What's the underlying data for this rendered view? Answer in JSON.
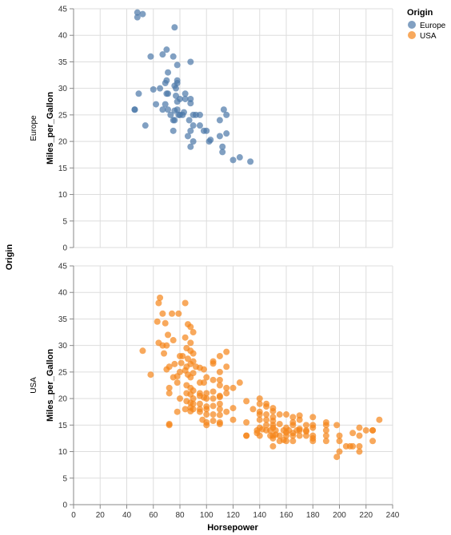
{
  "chart_data": {
    "type": "scatter",
    "facet_title": "Origin",
    "xlabel": "Horsepower",
    "ylabel": "Miles_per_Gallon",
    "xlim": [
      0,
      240
    ],
    "ylim": [
      0,
      45
    ],
    "x_ticks": [
      0,
      20,
      40,
      60,
      80,
      100,
      120,
      140,
      160,
      180,
      200,
      220,
      240
    ],
    "y_ticks": [
      0,
      5,
      10,
      15,
      20,
      25,
      30,
      35,
      40,
      45
    ],
    "grid": true,
    "legend": {
      "title": "Origin",
      "placement": "top-right",
      "entries": [
        {
          "name": "Europe",
          "color": "#4c78a8"
        },
        {
          "name": "USA",
          "color": "#f58518"
        }
      ]
    },
    "series": [
      {
        "name": "Europe",
        "color": "#4c78a8",
        "points": [
          [
            48,
            44.3
          ],
          [
            48,
            43.4
          ],
          [
            52,
            44
          ],
          [
            76,
            41.5
          ],
          [
            67,
            36.4
          ],
          [
            70,
            37.3
          ],
          [
            58,
            36
          ],
          [
            75,
            36
          ],
          [
            78,
            34.4
          ],
          [
            88,
            35
          ],
          [
            71,
            33
          ],
          [
            78,
            31.5
          ],
          [
            69,
            31
          ],
          [
            70,
            31.5
          ],
          [
            76,
            30.5
          ],
          [
            77,
            30
          ],
          [
            78,
            31
          ],
          [
            65,
            30
          ],
          [
            60,
            29.8
          ],
          [
            70,
            29
          ],
          [
            71,
            29
          ],
          [
            77,
            28.6
          ],
          [
            80,
            28
          ],
          [
            84,
            29
          ],
          [
            84,
            28
          ],
          [
            78,
            27.5
          ],
          [
            69,
            27
          ],
          [
            62,
            27
          ],
          [
            88,
            28
          ],
          [
            88,
            27.2
          ],
          [
            67,
            26
          ],
          [
            71,
            26
          ],
          [
            76,
            25.8
          ],
          [
            78,
            26
          ],
          [
            80,
            25
          ],
          [
            46,
            26
          ],
          [
            46,
            26
          ],
          [
            73,
            25
          ],
          [
            79,
            25
          ],
          [
            82,
            25
          ],
          [
            83,
            25.5
          ],
          [
            90,
            25
          ],
          [
            92,
            25
          ],
          [
            95,
            25
          ],
          [
            100,
            22
          ],
          [
            98,
            22
          ],
          [
            110,
            24
          ],
          [
            113,
            26
          ],
          [
            115,
            25
          ],
          [
            87,
            24
          ],
          [
            90,
            23
          ],
          [
            95,
            23
          ],
          [
            54,
            23
          ],
          [
            75,
            24
          ],
          [
            76,
            24
          ],
          [
            75,
            22
          ],
          [
            88,
            22
          ],
          [
            86,
            21
          ],
          [
            90,
            20
          ],
          [
            102,
            20
          ],
          [
            103,
            20.3
          ],
          [
            112,
            18
          ],
          [
            112,
            19
          ],
          [
            88,
            19
          ],
          [
            115,
            21.5
          ],
          [
            110,
            21
          ],
          [
            120,
            16.5
          ],
          [
            125,
            17
          ],
          [
            133,
            16.2
          ],
          [
            49,
            29
          ]
        ]
      },
      {
        "name": "USA",
        "color": "#f58518",
        "points": [
          [
            65,
            39
          ],
          [
            64,
            38
          ],
          [
            84,
            38
          ],
          [
            67,
            36
          ],
          [
            74,
            36
          ],
          [
            79,
            36
          ],
          [
            63,
            34.5
          ],
          [
            69,
            34.2
          ],
          [
            86,
            34
          ],
          [
            88,
            33.5
          ],
          [
            90,
            32.5
          ],
          [
            71,
            32
          ],
          [
            75,
            31
          ],
          [
            84,
            31.5
          ],
          [
            88,
            30.5
          ],
          [
            64,
            30.5
          ],
          [
            67,
            30
          ],
          [
            70,
            30
          ],
          [
            52,
            29
          ],
          [
            85,
            29.5
          ],
          [
            88,
            29
          ],
          [
            90,
            28.5
          ],
          [
            110,
            28
          ],
          [
            115,
            28.8
          ],
          [
            68,
            28.5
          ],
          [
            80,
            28
          ],
          [
            82,
            28
          ],
          [
            86,
            27.5
          ],
          [
            90,
            27
          ],
          [
            105,
            27
          ],
          [
            105,
            26.6
          ],
          [
            76,
            26.5
          ],
          [
            81,
            26.7
          ],
          [
            85,
            26
          ],
          [
            88,
            26.5
          ],
          [
            92,
            26
          ],
          [
            95,
            25.8
          ],
          [
            98,
            25.5
          ],
          [
            110,
            25
          ],
          [
            115,
            26
          ],
          [
            72,
            26
          ],
          [
            70,
            25.5
          ],
          [
            80,
            25
          ],
          [
            84,
            25.3
          ],
          [
            86,
            24.5
          ],
          [
            90,
            24.8
          ],
          [
            58,
            24.5
          ],
          [
            75,
            24
          ],
          [
            78,
            24.2
          ],
          [
            88,
            24
          ],
          [
            100,
            24
          ],
          [
            110,
            23.5
          ],
          [
            95,
            23
          ],
          [
            98,
            23
          ],
          [
            105,
            23.5
          ],
          [
            110,
            22.5
          ],
          [
            115,
            22
          ],
          [
            120,
            22
          ],
          [
            125,
            23
          ],
          [
            78,
            23
          ],
          [
            85,
            22.5
          ],
          [
            72,
            22
          ],
          [
            88,
            22
          ],
          [
            90,
            21.5
          ],
          [
            95,
            21
          ],
          [
            100,
            21
          ],
          [
            105,
            21.3
          ],
          [
            110,
            20.5
          ],
          [
            115,
            21
          ],
          [
            100,
            20
          ],
          [
            72,
            21
          ],
          [
            85,
            21
          ],
          [
            88,
            20.8
          ],
          [
            90,
            20
          ],
          [
            95,
            20.5
          ],
          [
            98,
            20.2
          ],
          [
            105,
            20
          ],
          [
            110,
            20.3
          ],
          [
            130,
            19.5
          ],
          [
            140,
            20
          ],
          [
            140,
            19
          ],
          [
            145,
            18.5
          ],
          [
            80,
            20
          ],
          [
            85,
            19.5
          ],
          [
            88,
            19.2
          ],
          [
            90,
            19
          ],
          [
            95,
            19
          ],
          [
            100,
            18.5
          ],
          [
            105,
            18.6
          ],
          [
            110,
            19
          ],
          [
            145,
            19
          ],
          [
            150,
            18.2
          ],
          [
            84,
            18
          ],
          [
            88,
            18.3
          ],
          [
            90,
            18
          ],
          [
            95,
            18
          ],
          [
            100,
            18
          ],
          [
            110,
            18
          ],
          [
            115,
            17.5
          ],
          [
            120,
            18.2
          ],
          [
            135,
            18
          ],
          [
            140,
            17.5
          ],
          [
            145,
            17
          ],
          [
            150,
            17.6
          ],
          [
            155,
            17
          ],
          [
            78,
            17.5
          ],
          [
            88,
            17.6
          ],
          [
            95,
            17.5
          ],
          [
            100,
            17
          ],
          [
            105,
            17
          ],
          [
            110,
            16.9
          ],
          [
            140,
            17
          ],
          [
            150,
            16.5
          ],
          [
            160,
            17
          ],
          [
            165,
            16.5
          ],
          [
            170,
            16.8
          ],
          [
            180,
            16.5
          ],
          [
            190,
            15.5
          ],
          [
            97,
            16
          ],
          [
            100,
            15.5
          ],
          [
            105,
            15.8
          ],
          [
            110,
            15.5
          ],
          [
            120,
            16
          ],
          [
            130,
            15.5
          ],
          [
            140,
            16
          ],
          [
            145,
            16
          ],
          [
            150,
            15.8
          ],
          [
            155,
            15.2
          ],
          [
            165,
            15.5
          ],
          [
            170,
            16
          ],
          [
            175,
            15
          ],
          [
            180,
            15
          ],
          [
            190,
            15
          ],
          [
            198,
            15
          ],
          [
            72,
            15
          ],
          [
            72,
            15.2
          ],
          [
            100,
            15
          ],
          [
            110,
            15.2
          ],
          [
            140,
            14.5
          ],
          [
            145,
            15
          ],
          [
            150,
            15
          ],
          [
            160,
            14.5
          ],
          [
            165,
            15
          ],
          [
            170,
            14.3
          ],
          [
            175,
            14
          ],
          [
            180,
            14.5
          ],
          [
            190,
            14
          ],
          [
            215,
            14.5
          ],
          [
            225,
            14
          ],
          [
            230,
            16
          ],
          [
            138,
            14
          ],
          [
            142,
            14.2
          ],
          [
            148,
            14
          ],
          [
            150,
            14.5
          ],
          [
            152,
            14
          ],
          [
            158,
            14
          ],
          [
            160,
            13.6
          ],
          [
            165,
            13.5
          ],
          [
            170,
            14
          ],
          [
            175,
            13
          ],
          [
            180,
            13
          ],
          [
            190,
            13
          ],
          [
            200,
            13
          ],
          [
            210,
            13.5
          ],
          [
            215,
            13
          ],
          [
            220,
            14
          ],
          [
            225,
            14
          ],
          [
            130,
            13
          ],
          [
            140,
            13
          ],
          [
            150,
            13
          ],
          [
            152,
            13.2
          ],
          [
            155,
            13
          ],
          [
            160,
            13
          ],
          [
            165,
            13
          ],
          [
            170,
            13
          ],
          [
            175,
            13.8
          ],
          [
            180,
            12.5
          ],
          [
            190,
            12
          ],
          [
            200,
            12
          ],
          [
            210,
            11
          ],
          [
            215,
            11
          ],
          [
            225,
            12
          ],
          [
            150,
            11
          ],
          [
            165,
            12
          ],
          [
            180,
            12
          ],
          [
            198,
            9
          ],
          [
            200,
            10
          ],
          [
            215,
            10
          ],
          [
            205,
            11
          ],
          [
            208,
            11
          ],
          [
            130,
            13
          ],
          [
            138,
            13.5
          ],
          [
            145,
            14
          ],
          [
            148,
            13
          ],
          [
            150,
            12.5
          ],
          [
            155,
            12
          ],
          [
            158,
            12.2
          ],
          [
            160,
            12
          ],
          [
            162,
            14
          ],
          [
            168,
            14
          ]
        ]
      }
    ]
  }
}
